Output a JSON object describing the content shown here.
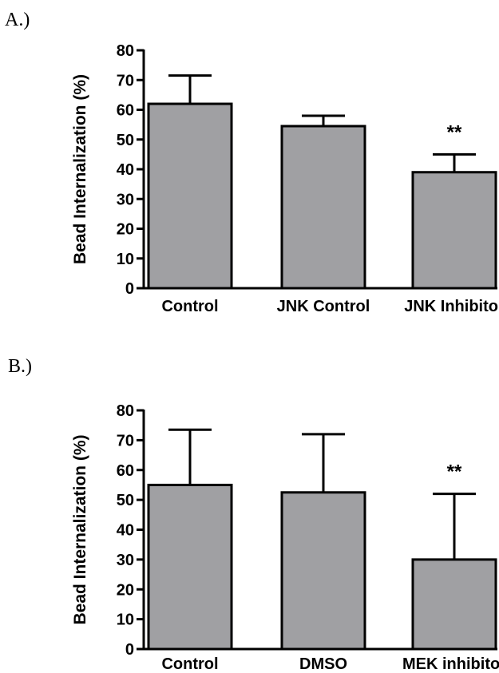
{
  "panels": {
    "a_label": "A.)",
    "b_label": "B.)"
  },
  "chart_data": [
    {
      "type": "bar",
      "title": "",
      "xlabel": "",
      "ylabel": "Bead Internalization (%)",
      "ylim": [
        0,
        80
      ],
      "yticks": [
        0,
        10,
        20,
        30,
        40,
        50,
        60,
        70,
        80
      ],
      "categories": [
        "Control",
        "JNK Control",
        "JNK Inhibitor"
      ],
      "values": [
        62,
        54.5,
        39
      ],
      "errors": [
        9.5,
        3.5,
        6
      ],
      "annotations": [
        "",
        "",
        "**"
      ],
      "bar_color": "#a0a0a3",
      "grid": false
    },
    {
      "type": "bar",
      "title": "",
      "xlabel": "",
      "ylabel": "Bead Internalization (%)",
      "ylim": [
        0,
        80
      ],
      "yticks": [
        0,
        10,
        20,
        30,
        40,
        50,
        60,
        70,
        80
      ],
      "categories": [
        "Control",
        "DMSO",
        "MEK inhibitor"
      ],
      "values": [
        55,
        52.5,
        30
      ],
      "errors": [
        18.5,
        19.5,
        22
      ],
      "annotations": [
        "",
        "",
        "**"
      ],
      "bar_color": "#a0a0a3",
      "grid": false
    }
  ]
}
